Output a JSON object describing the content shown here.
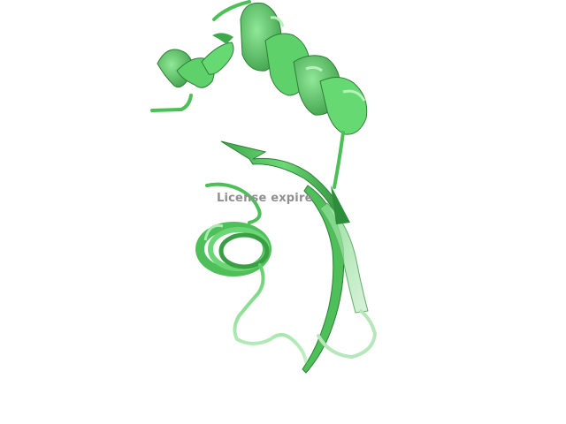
{
  "watermark": {
    "text": "License expire"
  },
  "molecule": {
    "representation": "cartoon",
    "color": "#5fd16a",
    "shadow_color": "#2f8a3a",
    "highlight_color": "#9ef0a6",
    "fog_color": "#d4f3d7",
    "background": "#ffffff"
  }
}
